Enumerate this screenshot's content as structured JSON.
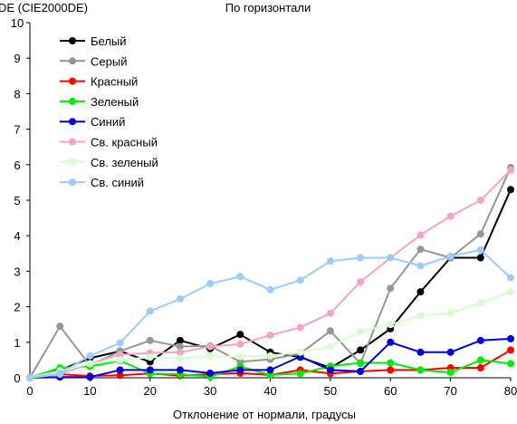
{
  "chart_data": {
    "type": "line",
    "title": "По горизонтали",
    "ylabel": "DE (CIE2000DE)",
    "xlabel": "Отклонение от нормали, градусы",
    "xlim": [
      0,
      80
    ],
    "ylim": [
      0,
      10
    ],
    "x_ticks": [
      0,
      10,
      20,
      30,
      40,
      50,
      60,
      70,
      80
    ],
    "y_ticks": [
      0,
      1,
      2,
      3,
      4,
      5,
      6,
      7,
      8,
      9,
      10
    ],
    "grid": false,
    "legend_position": "top-left",
    "x": [
      0,
      5,
      10,
      15,
      20,
      25,
      30,
      35,
      40,
      45,
      50,
      55,
      60,
      65,
      70,
      75,
      80
    ],
    "series": [
      {
        "name": "Белый",
        "color": "#000000",
        "values": [
          0,
          0.22,
          0.55,
          0.75,
          0.45,
          1.05,
          0.82,
          1.22,
          0.72,
          0.58,
          0.28,
          0.78,
          1.38,
          2.42,
          3.38,
          3.38,
          5.3
        ]
      },
      {
        "name": "Серый",
        "color": "#969696",
        "values": [
          0,
          1.45,
          0.35,
          0.75,
          1.05,
          0.88,
          0.9,
          0.45,
          0.52,
          0.68,
          1.32,
          0.4,
          2.52,
          3.62,
          3.38,
          4.05,
          5.92
        ]
      },
      {
        "name": "Красный",
        "color": "#ff0000",
        "values": [
          0,
          0.1,
          0.05,
          0.07,
          0.12,
          0.06,
          0.1,
          0.13,
          0.08,
          0.22,
          0.12,
          0.18,
          0.22,
          0.22,
          0.28,
          0.28,
          0.78
        ]
      },
      {
        "name": "Зеленый",
        "color": "#00ee00",
        "values": [
          0,
          0.28,
          0.32,
          0.48,
          0.12,
          0.1,
          0.03,
          0.32,
          0.08,
          0.12,
          0.33,
          0.42,
          0.42,
          0.22,
          0.15,
          0.5,
          0.4
        ]
      },
      {
        "name": "Синий",
        "color": "#0000dd",
        "values": [
          0,
          0.02,
          0.02,
          0.22,
          0.22,
          0.22,
          0.13,
          0.22,
          0.22,
          0.6,
          0.22,
          0.18,
          1.0,
          0.72,
          0.72,
          1.05,
          1.1
        ]
      },
      {
        "name": "Св. красный",
        "color": "#f7a3c9",
        "values": [
          0,
          0.1,
          0.4,
          0.65,
          0.7,
          0.72,
          0.88,
          0.95,
          1.2,
          1.42,
          1.82,
          2.7,
          3.38,
          4.02,
          4.55,
          5.0,
          5.85
        ]
      },
      {
        "name": "Св. зеленый",
        "color": "#d4ffcc",
        "values": [
          0,
          0.2,
          0.4,
          0.5,
          0.58,
          0.55,
          0.6,
          0.6,
          0.62,
          0.72,
          0.88,
          1.3,
          1.5,
          1.75,
          1.82,
          2.12,
          2.42
        ]
      },
      {
        "name": "Св. синий",
        "color": "#99ccff",
        "values": [
          0,
          0.12,
          0.62,
          0.98,
          1.88,
          2.22,
          2.65,
          2.85,
          2.48,
          2.75,
          3.28,
          3.38,
          3.38,
          3.15,
          3.42,
          3.6,
          2.82
        ]
      }
    ]
  }
}
